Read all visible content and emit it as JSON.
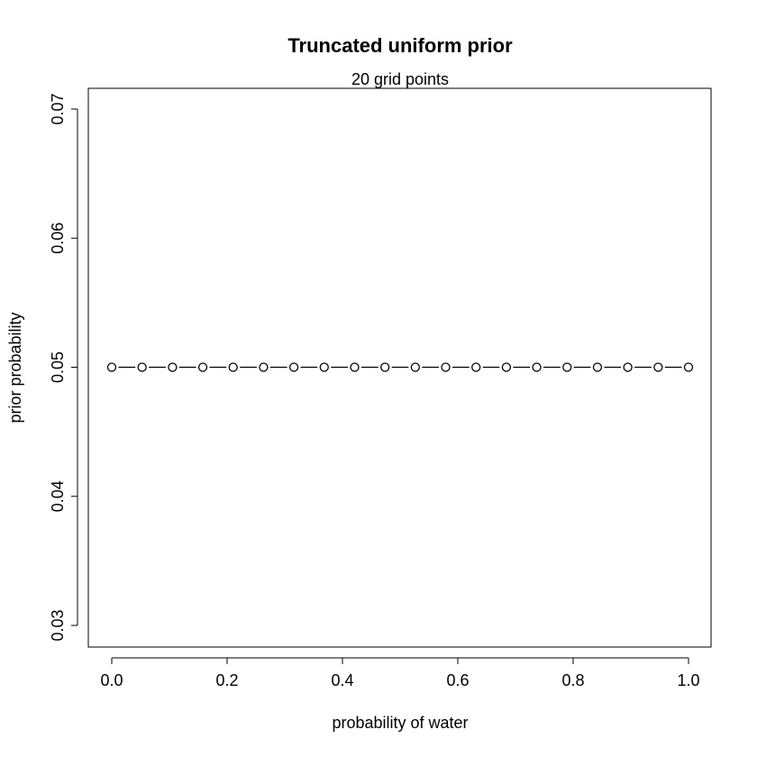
{
  "chart_data": {
    "type": "line",
    "title": "Truncated uniform prior",
    "subtitle": "20 grid points",
    "xlabel": "probability of water",
    "ylabel": "prior probability",
    "xlim": [
      0,
      1
    ],
    "ylim": [
      0.03,
      0.07
    ],
    "x_ticks": [
      {
        "value": 0.0,
        "label": "0.0"
      },
      {
        "value": 0.2,
        "label": "0.2"
      },
      {
        "value": 0.4,
        "label": "0.4"
      },
      {
        "value": 0.6,
        "label": "0.6"
      },
      {
        "value": 0.8,
        "label": "0.8"
      },
      {
        "value": 1.0,
        "label": "1.0"
      }
    ],
    "y_ticks": [
      {
        "value": 0.03,
        "label": "0.03"
      },
      {
        "value": 0.04,
        "label": "0.04"
      },
      {
        "value": 0.05,
        "label": "0.05"
      },
      {
        "value": 0.06,
        "label": "0.06"
      },
      {
        "value": 0.07,
        "label": "0.07"
      }
    ],
    "grid": false,
    "line_style": "dashed",
    "marker": "open-circle",
    "series": [
      {
        "x": [
          0,
          0.0526,
          0.1053,
          0.1579,
          0.2105,
          0.2632,
          0.3158,
          0.3684,
          0.4211,
          0.4737,
          0.5263,
          0.5789,
          0.6316,
          0.6842,
          0.7368,
          0.7895,
          0.8421,
          0.8947,
          0.9474,
          1.0
        ],
        "y": [
          0.05,
          0.05,
          0.05,
          0.05,
          0.05,
          0.05,
          0.05,
          0.05,
          0.05,
          0.05,
          0.05,
          0.05,
          0.05,
          0.05,
          0.05,
          0.05,
          0.05,
          0.05,
          0.05,
          0.05
        ]
      }
    ]
  }
}
